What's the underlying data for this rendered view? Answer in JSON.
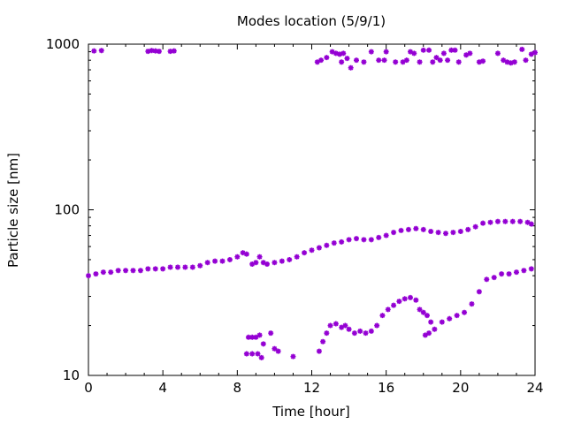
{
  "chart_data": {
    "type": "scatter",
    "title": "Modes location (5/9/1)",
    "xlabel": "Time [hour]",
    "ylabel": "Particle size [nm]",
    "xlim": [
      0,
      24
    ],
    "ylim": [
      10,
      1000
    ],
    "yscale": "log",
    "x_ticks": [
      0,
      4,
      8,
      12,
      16,
      20,
      24
    ],
    "y_ticks": [
      10,
      100,
      1000
    ],
    "grid": false,
    "legend": "none",
    "marker_color": "#9400d3",
    "marker": "asterisk",
    "series": [
      {
        "points": [
          [
            0.3,
            910
          ],
          [
            0.7,
            915
          ],
          [
            3.2,
            905
          ],
          [
            3.4,
            915
          ],
          [
            3.6,
            910
          ],
          [
            3.8,
            905
          ],
          [
            4.4,
            905
          ],
          [
            4.6,
            910
          ],
          [
            12.3,
            780
          ],
          [
            12.5,
            800
          ],
          [
            12.8,
            830
          ],
          [
            13.1,
            900
          ],
          [
            13.3,
            880
          ],
          [
            13.5,
            870
          ],
          [
            13.6,
            780
          ],
          [
            13.7,
            880
          ],
          [
            13.9,
            820
          ],
          [
            14.1,
            720
          ],
          [
            14.4,
            800
          ],
          [
            14.8,
            780
          ],
          [
            15.2,
            900
          ],
          [
            15.6,
            800
          ],
          [
            15.9,
            800
          ],
          [
            16.0,
            900
          ],
          [
            16.5,
            780
          ],
          [
            16.9,
            780
          ],
          [
            17.1,
            800
          ],
          [
            17.3,
            900
          ],
          [
            17.5,
            880
          ],
          [
            17.8,
            780
          ],
          [
            18.0,
            920
          ],
          [
            18.3,
            920
          ],
          [
            18.5,
            780
          ],
          [
            18.7,
            830
          ],
          [
            18.9,
            800
          ],
          [
            19.1,
            880
          ],
          [
            19.3,
            800
          ],
          [
            19.5,
            920
          ],
          [
            19.7,
            920
          ],
          [
            19.9,
            780
          ],
          [
            20.3,
            860
          ],
          [
            20.5,
            880
          ],
          [
            21.0,
            780
          ],
          [
            21.2,
            790
          ],
          [
            22.0,
            880
          ],
          [
            22.3,
            800
          ],
          [
            22.5,
            780
          ],
          [
            22.7,
            770
          ],
          [
            22.9,
            780
          ],
          [
            23.3,
            930
          ],
          [
            23.5,
            800
          ],
          [
            23.8,
            870
          ],
          [
            24.0,
            890
          ],
          [
            0.0,
            40
          ],
          [
            0.4,
            41
          ],
          [
            0.8,
            42
          ],
          [
            1.2,
            42
          ],
          [
            1.6,
            43
          ],
          [
            2.0,
            43
          ],
          [
            2.4,
            43
          ],
          [
            2.8,
            43
          ],
          [
            3.2,
            44
          ],
          [
            3.6,
            44
          ],
          [
            4.0,
            44
          ],
          [
            4.4,
            45
          ],
          [
            4.8,
            45
          ],
          [
            5.2,
            45
          ],
          [
            5.6,
            45
          ],
          [
            6.0,
            46
          ],
          [
            6.4,
            48
          ],
          [
            6.8,
            49
          ],
          [
            7.2,
            49
          ],
          [
            7.6,
            50
          ],
          [
            8.0,
            52
          ],
          [
            8.3,
            55
          ],
          [
            8.5,
            54
          ],
          [
            8.8,
            47
          ],
          [
            9.0,
            48
          ],
          [
            9.2,
            52
          ],
          [
            9.4,
            48
          ],
          [
            9.6,
            47
          ],
          [
            10.0,
            48
          ],
          [
            10.4,
            49
          ],
          [
            10.8,
            50
          ],
          [
            11.2,
            52
          ],
          [
            11.6,
            55
          ],
          [
            12.0,
            57
          ],
          [
            12.4,
            59
          ],
          [
            12.8,
            61
          ],
          [
            13.2,
            63
          ],
          [
            13.6,
            64
          ],
          [
            14.0,
            66
          ],
          [
            14.4,
            67
          ],
          [
            14.8,
            66
          ],
          [
            15.2,
            66
          ],
          [
            15.6,
            68
          ],
          [
            16.0,
            70
          ],
          [
            16.4,
            73
          ],
          [
            16.8,
            75
          ],
          [
            17.2,
            76
          ],
          [
            17.6,
            77
          ],
          [
            18.0,
            76
          ],
          [
            18.4,
            74
          ],
          [
            18.8,
            73
          ],
          [
            19.2,
            72
          ],
          [
            19.6,
            73
          ],
          [
            20.0,
            74
          ],
          [
            20.4,
            76
          ],
          [
            20.8,
            79
          ],
          [
            21.2,
            83
          ],
          [
            21.6,
            84
          ],
          [
            22.0,
            85
          ],
          [
            22.4,
            85
          ],
          [
            22.8,
            85
          ],
          [
            23.2,
            85
          ],
          [
            23.6,
            84
          ],
          [
            23.8,
            82
          ],
          [
            8.6,
            17
          ],
          [
            8.8,
            17
          ],
          [
            9.0,
            17
          ],
          [
            9.2,
            17.5
          ],
          [
            9.4,
            15.5
          ],
          [
            8.5,
            13.5
          ],
          [
            8.8,
            13.5
          ],
          [
            9.1,
            13.5
          ],
          [
            9.3,
            12.8
          ],
          [
            9.8,
            18
          ],
          [
            10.0,
            14.5
          ],
          [
            10.2,
            14
          ],
          [
            11.0,
            13
          ],
          [
            12.4,
            14
          ],
          [
            12.6,
            16
          ],
          [
            12.8,
            18
          ],
          [
            13.0,
            20
          ],
          [
            13.3,
            20.5
          ],
          [
            13.6,
            19.5
          ],
          [
            13.8,
            20
          ],
          [
            14.0,
            19
          ],
          [
            14.3,
            18
          ],
          [
            14.6,
            18.5
          ],
          [
            14.9,
            18
          ],
          [
            15.2,
            18.5
          ],
          [
            15.5,
            20
          ],
          [
            15.8,
            23
          ],
          [
            16.1,
            25
          ],
          [
            16.4,
            26.5
          ],
          [
            16.7,
            28
          ],
          [
            17.0,
            29
          ],
          [
            17.3,
            29.5
          ],
          [
            17.6,
            28.5
          ],
          [
            17.8,
            25
          ],
          [
            18.0,
            24
          ],
          [
            18.2,
            23
          ],
          [
            18.4,
            21
          ],
          [
            18.1,
            17.5
          ],
          [
            18.3,
            18
          ],
          [
            18.6,
            19
          ],
          [
            19.0,
            21
          ],
          [
            19.4,
            22
          ],
          [
            19.8,
            23
          ],
          [
            20.2,
            24
          ],
          [
            20.6,
            27
          ],
          [
            21.0,
            32
          ],
          [
            21.4,
            38
          ],
          [
            21.8,
            39
          ],
          [
            22.2,
            41
          ],
          [
            22.6,
            41
          ],
          [
            23.0,
            42
          ],
          [
            23.4,
            43
          ],
          [
            23.8,
            44
          ]
        ]
      }
    ]
  }
}
